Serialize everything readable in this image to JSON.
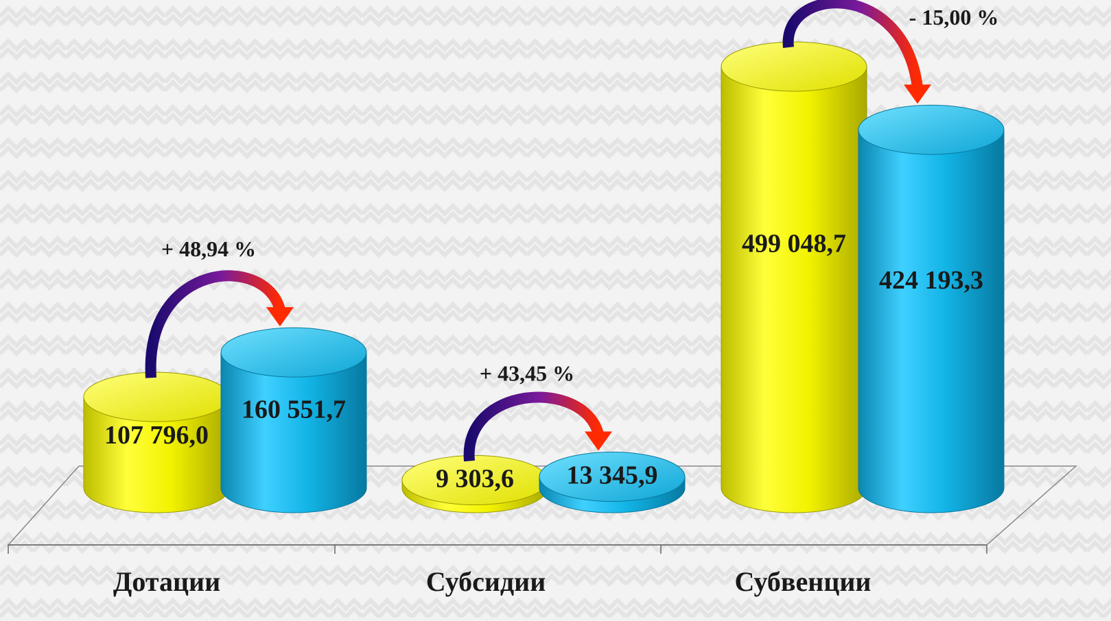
{
  "chart_data": {
    "type": "bar",
    "style": "3d-cylinder",
    "categories": [
      "Дотации",
      "Субсидии",
      "Субвенции"
    ],
    "series": [
      {
        "values": [
          107796.0,
          9303.6,
          499048.7
        ],
        "color": "#f2f200"
      },
      {
        "values": [
          160551.7,
          13345.9,
          424193.3
        ],
        "color": "#12b4e6"
      }
    ],
    "data_labels": [
      [
        "107 796,0",
        "9 303,6",
        "499 048,7"
      ],
      [
        "160 551,7",
        "13 345,9",
        "424 193,3"
      ]
    ],
    "change_labels": [
      "+ 48,94 %",
      "+ 43,45 %",
      "- 15,00 %"
    ],
    "ylim": [
      0,
      560000
    ],
    "grid": false,
    "legend": "none",
    "colors": {
      "yellow": "#f2f200",
      "cyan": "#12b4e6",
      "arrow_start": "#1a0a6e",
      "arrow_end": "#ff2a00",
      "text": "#1a1a1a"
    }
  }
}
